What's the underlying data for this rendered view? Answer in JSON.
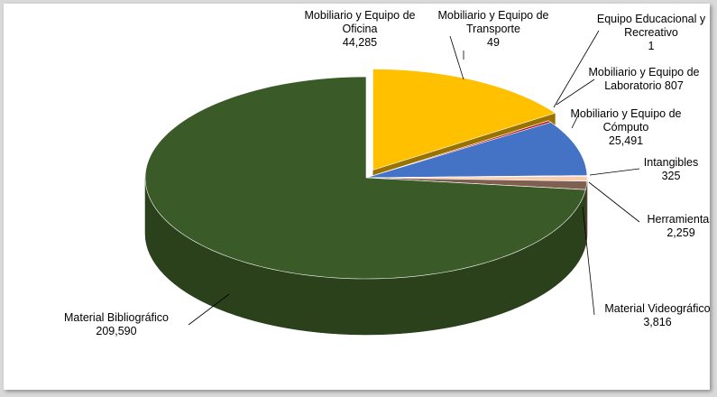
{
  "chart_data": {
    "type": "pie",
    "title": "",
    "slices": [
      {
        "label_lines": [
          "Mobiliario y Equipo de",
          "Oficina",
          "44,285"
        ],
        "name": "Mobiliario y Equipo de Oficina",
        "value": 44285,
        "color": "#ffc000"
      },
      {
        "label_lines": [
          "Mobiliario y Equipo de",
          "Transporte",
          "49"
        ],
        "name": "Mobiliario y Equipo de Transporte",
        "value": 49,
        "color": "#c0504d"
      },
      {
        "label_lines": [
          "Equipo Educacional y",
          "Recreativo",
          "1"
        ],
        "name": "Equipo Educacional y Recreativo",
        "value": 1,
        "color": "#9bbb59"
      },
      {
        "label_lines": [
          "Mobiliario y Equipo de",
          "Laboratorio 807"
        ],
        "name": "Mobiliario y Equipo de Laboratorio",
        "value": 807,
        "color": "#c00000"
      },
      {
        "label_lines": [
          "Mobiliario y Equipo de",
          "Cómputo",
          "25,491"
        ],
        "name": "Mobiliario y Equipo de Cómputo",
        "value": 25491,
        "color": "#4472c4"
      },
      {
        "label_lines": [
          "Intangibles",
          "325"
        ],
        "name": "Intangibles",
        "value": 325,
        "color": "#1f3864"
      },
      {
        "label_lines": [
          "Herramientas",
          "2,259"
        ],
        "name": "Herramientas",
        "value": 2259,
        "color": "#f8cbad"
      },
      {
        "label_lines": [
          "Material Videográfico",
          "3,816"
        ],
        "name": "Material Videográfico",
        "value": 3816,
        "color": "#7f5f4f"
      },
      {
        "label_lines": [
          "Material Bibliográfico",
          "209,590"
        ],
        "name": "Material Bibliográfico",
        "value": 209590,
        "color": "#3a5a27"
      }
    ]
  }
}
